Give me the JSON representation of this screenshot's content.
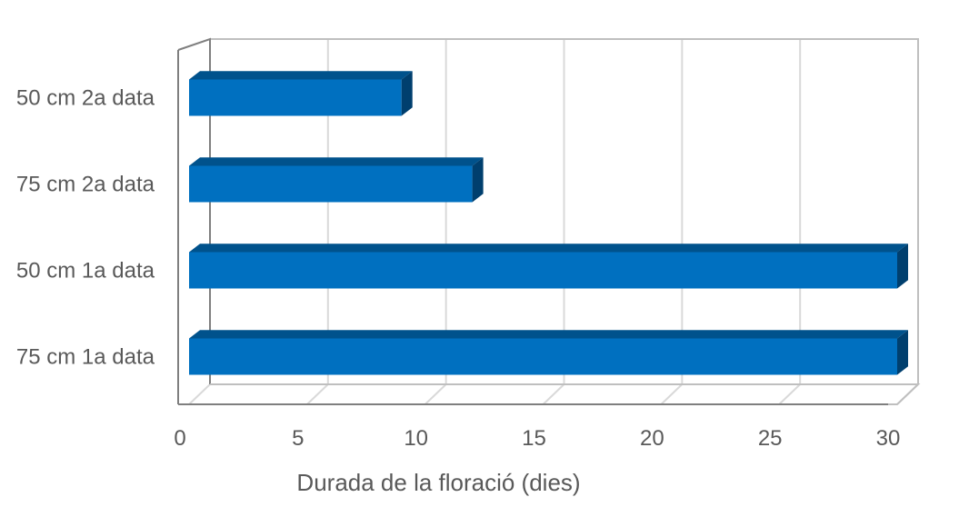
{
  "chart_data": {
    "type": "bar",
    "orientation": "horizontal",
    "style": "3d",
    "categories": [
      "75 cm 1a data",
      "50 cm 1a data",
      "75 cm 2a data",
      "50 cm 2a data"
    ],
    "values": [
      30,
      30,
      12,
      9
    ],
    "xlabel": "Durada de la floració (dies)",
    "ylabel": "",
    "xlim": [
      0,
      30
    ],
    "xticks": [
      0,
      5,
      10,
      15,
      20,
      25,
      30
    ],
    "grid": true,
    "legend": "none",
    "colors": {
      "bar_front": "#0070C0",
      "bar_top": "#00528C",
      "bar_side": "#003F6E",
      "grid": "#D9D9D9",
      "axis": "#7F7F7F",
      "text": "#595959"
    }
  }
}
